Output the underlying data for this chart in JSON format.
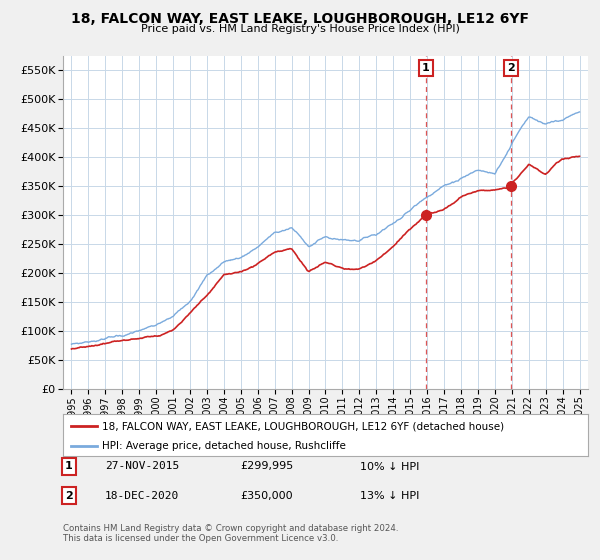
{
  "title": "18, FALCON WAY, EAST LEAKE, LOUGHBOROUGH, LE12 6YF",
  "subtitle": "Price paid vs. HM Land Registry's House Price Index (HPI)",
  "legend_line1": "18, FALCON WAY, EAST LEAKE, LOUGHBOROUGH, LE12 6YF (detached house)",
  "legend_line2": "HPI: Average price, detached house, Rushcliffe",
  "annotation1_date": "27-NOV-2015",
  "annotation1_price": "£299,995",
  "annotation1_hpi": "10% ↓ HPI",
  "annotation2_date": "18-DEC-2020",
  "annotation2_price": "£350,000",
  "annotation2_hpi": "13% ↓ HPI",
  "footer1": "Contains HM Land Registry data © Crown copyright and database right 2024.",
  "footer2": "This data is licensed under the Open Government Licence v3.0.",
  "sale1_year": 2015.91,
  "sale1_value": 299995,
  "sale2_year": 2020.97,
  "sale2_value": 350000,
  "hpi_color": "#7aaadd",
  "price_color": "#cc2222",
  "point_color": "#cc2222",
  "vline_color": "#dd5555",
  "bg_color": "#f0f0f0",
  "plot_bg": "#ffffff",
  "grid_color": "#c8d8e8",
  "ylim": [
    0,
    575000
  ],
  "yticks": [
    0,
    50000,
    100000,
    150000,
    200000,
    250000,
    300000,
    350000,
    400000,
    450000,
    500000,
    550000
  ],
  "xlim_start": 1994.5,
  "xlim_end": 2025.5,
  "hpi_anchors": [
    [
      1995,
      78000
    ],
    [
      1996,
      82000
    ],
    [
      1997,
      88000
    ],
    [
      1998,
      93000
    ],
    [
      1999,
      100000
    ],
    [
      2000,
      110000
    ],
    [
      2001,
      125000
    ],
    [
      2002,
      155000
    ],
    [
      2003,
      195000
    ],
    [
      2004,
      220000
    ],
    [
      2005,
      228000
    ],
    [
      2006,
      245000
    ],
    [
      2007,
      270000
    ],
    [
      2008,
      278000
    ],
    [
      2009,
      248000
    ],
    [
      2010,
      262000
    ],
    [
      2011,
      258000
    ],
    [
      2012,
      258000
    ],
    [
      2013,
      268000
    ],
    [
      2014,
      288000
    ],
    [
      2015,
      308000
    ],
    [
      2016,
      335000
    ],
    [
      2017,
      350000
    ],
    [
      2018,
      365000
    ],
    [
      2019,
      378000
    ],
    [
      2020,
      372000
    ],
    [
      2021,
      425000
    ],
    [
      2022,
      472000
    ],
    [
      2023,
      458000
    ],
    [
      2024,
      462000
    ],
    [
      2025,
      478000
    ]
  ],
  "price_anchors": [
    [
      1995,
      68000
    ],
    [
      1996,
      73000
    ],
    [
      1997,
      79000
    ],
    [
      1998,
      84000
    ],
    [
      1999,
      88000
    ],
    [
      2000,
      93000
    ],
    [
      2001,
      102000
    ],
    [
      2002,
      133000
    ],
    [
      2003,
      162000
    ],
    [
      2004,
      198000
    ],
    [
      2005,
      202000
    ],
    [
      2006,
      218000
    ],
    [
      2007,
      238000
    ],
    [
      2008,
      242000
    ],
    [
      2009,
      202000
    ],
    [
      2010,
      218000
    ],
    [
      2011,
      207000
    ],
    [
      2012,
      207000
    ],
    [
      2013,
      222000
    ],
    [
      2014,
      248000
    ],
    [
      2015.91,
      299995
    ],
    [
      2016,
      300500
    ],
    [
      2017,
      312000
    ],
    [
      2018,
      332000
    ],
    [
      2019,
      342000
    ],
    [
      2020.97,
      350000
    ],
    [
      2021,
      356000
    ],
    [
      2022,
      388000
    ],
    [
      2023,
      372000
    ],
    [
      2024,
      397000
    ],
    [
      2025,
      402000
    ]
  ]
}
